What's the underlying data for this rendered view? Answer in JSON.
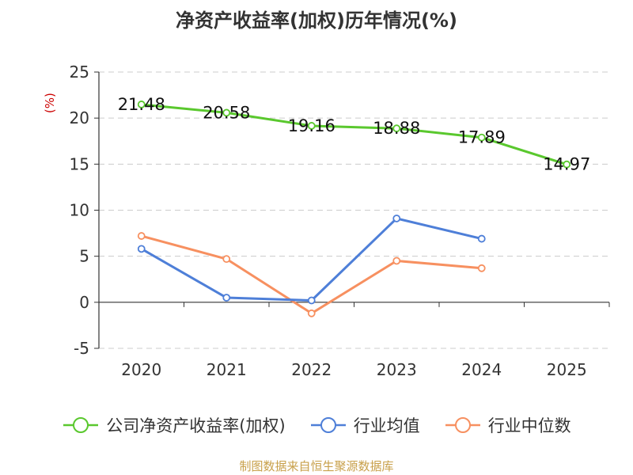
{
  "title": "净资产收益率(加权)历年情况(%)",
  "source": "制图数据来自恒生聚源数据库",
  "colors": {
    "company": "#5ac82e",
    "industry_avg": "#4e7fd8",
    "industry_median": "#f79060",
    "unit_label": "#cc0000",
    "source_text": "#c8a04a",
    "axis": "#333333",
    "grid": "#cccccc"
  },
  "chart_data": {
    "type": "line",
    "title": "净资产收益率(加权)历年情况(%)",
    "ylabel": "(%)",
    "xlabel": "",
    "categories": [
      "2020",
      "2021",
      "2022",
      "2023",
      "2024",
      "2025"
    ],
    "ylim": [
      -5,
      25
    ],
    "yticks": [
      25,
      20,
      15,
      10,
      5,
      0,
      -5
    ],
    "grid": true,
    "legend_position": "bottom",
    "series": [
      {
        "name": "公司净资产收益率(加权)",
        "color_key": "company",
        "values": [
          21.48,
          20.58,
          19.16,
          18.88,
          17.89,
          14.97
        ],
        "data_labels": [
          "21.48",
          "20.58",
          "19.16",
          "18.88",
          "17.89",
          "14.97"
        ]
      },
      {
        "name": "行业均值",
        "color_key": "industry_avg",
        "values": [
          5.8,
          0.5,
          0.2,
          9.1,
          6.9,
          null
        ]
      },
      {
        "name": "行业中位数",
        "color_key": "industry_median",
        "values": [
          7.2,
          4.7,
          -1.2,
          4.5,
          3.7,
          null
        ]
      }
    ]
  }
}
